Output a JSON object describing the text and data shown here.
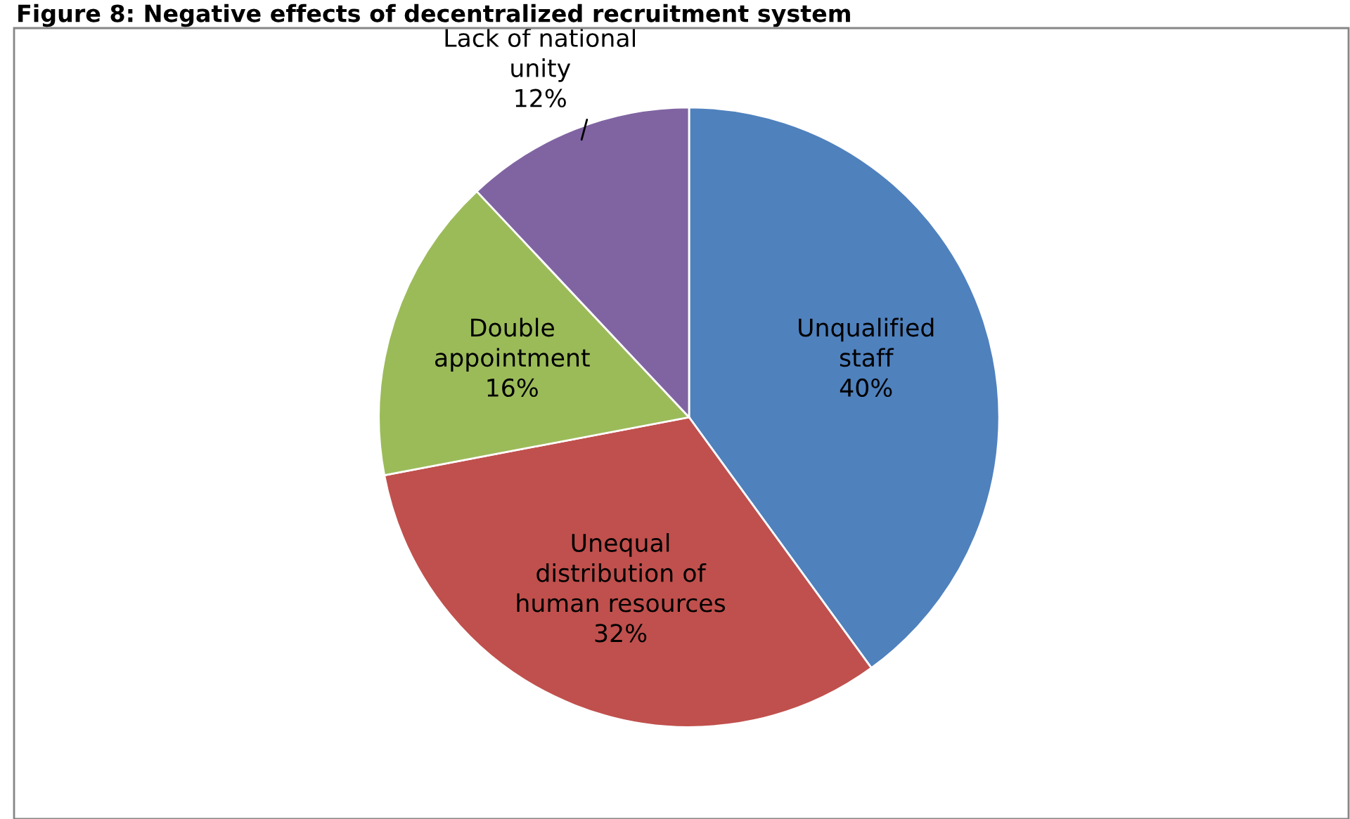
{
  "chart_data": {
    "type": "pie",
    "title": "Figure 8: Negative effects of decentralized recruitment system",
    "categories": [
      "Unqualified staff",
      "Unequal distribution of human resources",
      "Double appointment",
      "Lack of national unity"
    ],
    "values": [
      40,
      32,
      16,
      12
    ],
    "value_labels": [
      "40%",
      "32%",
      "16%",
      "12%"
    ],
    "colors": [
      "#4f81bd",
      "#c0504d",
      "#9bbb59",
      "#8064a2"
    ]
  }
}
